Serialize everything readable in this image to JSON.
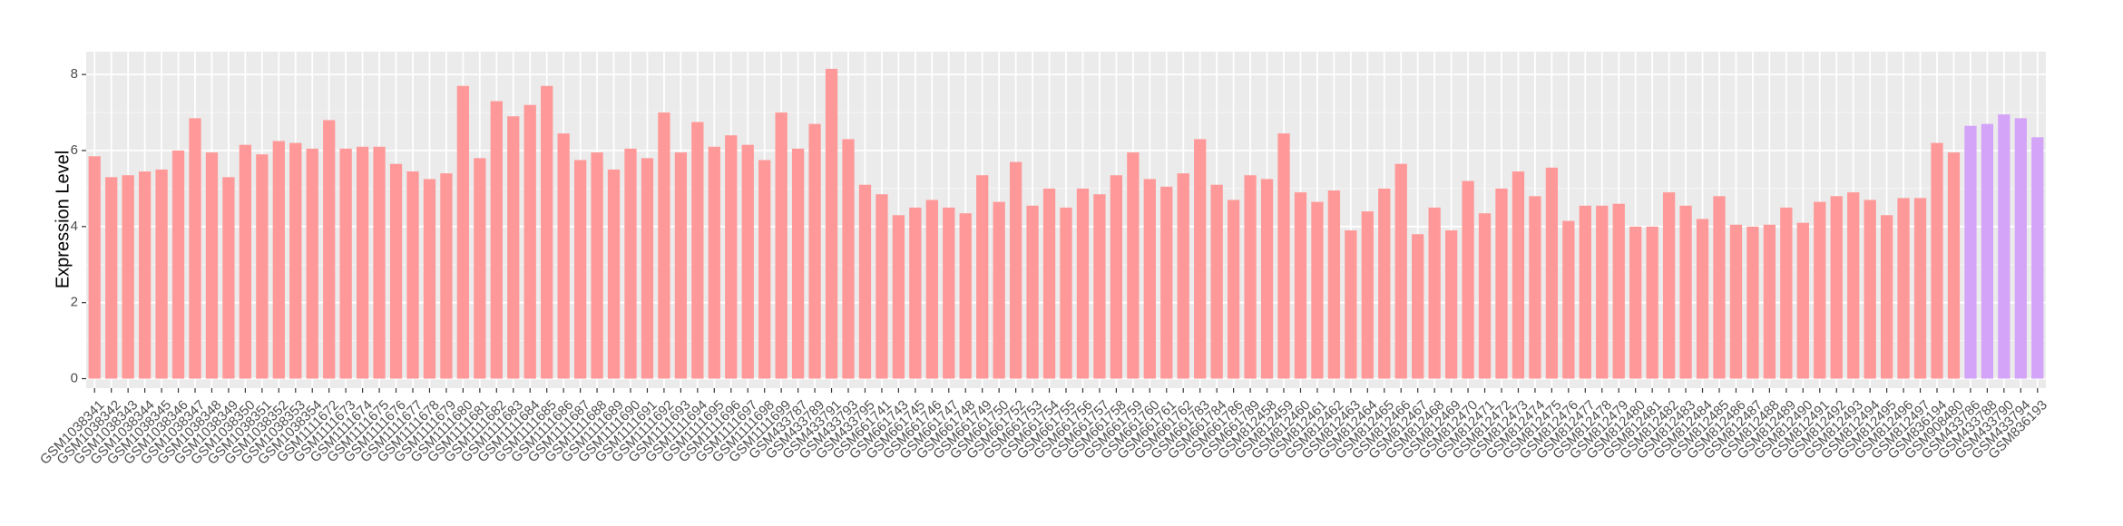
{
  "chart_data": {
    "type": "bar",
    "y_label": "Expression Level",
    "categories": [
      "GSM1038341",
      "GSM1038342",
      "GSM1038343",
      "GSM1038344",
      "GSM1038345",
      "GSM1038346",
      "GSM1038347",
      "GSM1038348",
      "GSM1038349",
      "GSM1038350",
      "GSM1038351",
      "GSM1038352",
      "GSM1038353",
      "GSM1038354",
      "GSM1111672",
      "GSM1111673",
      "GSM1111674",
      "GSM1111675",
      "GSM1111676",
      "GSM1111677",
      "GSM1111678",
      "GSM1111679",
      "GSM1111680",
      "GSM1111681",
      "GSM1111682",
      "GSM1111683",
      "GSM1111684",
      "GSM1111685",
      "GSM1111686",
      "GSM1111687",
      "GSM1111688",
      "GSM1111689",
      "GSM1111690",
      "GSM1111691",
      "GSM1111692",
      "GSM1111693",
      "GSM1111694",
      "GSM1111695",
      "GSM1111696",
      "GSM1111697",
      "GSM1111698",
      "GSM1111699",
      "GSM433787",
      "GSM433789",
      "GSM433791",
      "GSM433793",
      "GSM433795",
      "GSM661741",
      "GSM661743",
      "GSM661745",
      "GSM661746",
      "GSM661747",
      "GSM661748",
      "GSM661749",
      "GSM661750",
      "GSM661752",
      "GSM661753",
      "GSM661754",
      "GSM661755",
      "GSM661756",
      "GSM661757",
      "GSM661758",
      "GSM661759",
      "GSM661760",
      "GSM661761",
      "GSM661762",
      "GSM661783",
      "GSM661784",
      "GSM661786",
      "GSM661789",
      "GSM812458",
      "GSM812459",
      "GSM812460",
      "GSM812461",
      "GSM812462",
      "GSM812463",
      "GSM812464",
      "GSM812465",
      "GSM812466",
      "GSM812467",
      "GSM812468",
      "GSM812469",
      "GSM812470",
      "GSM812471",
      "GSM812472",
      "GSM812473",
      "GSM812474",
      "GSM812475",
      "GSM812476",
      "GSM812477",
      "GSM812478",
      "GSM812479",
      "GSM812480",
      "GSM812481",
      "GSM812482",
      "GSM812483",
      "GSM812484",
      "GSM812485",
      "GSM812486",
      "GSM812487",
      "GSM812488",
      "GSM812489",
      "GSM812490",
      "GSM812491",
      "GSM812492",
      "GSM812493",
      "GSM812494",
      "GSM812495",
      "GSM812496",
      "GSM812497",
      "GSM836194",
      "GSM908480",
      "GSM433786",
      "GSM433788",
      "GSM433790",
      "GSM433794",
      "GSM836193"
    ],
    "values": [
      5.85,
      5.3,
      5.35,
      5.45,
      5.5,
      6.0,
      6.85,
      5.95,
      5.3,
      6.15,
      5.9,
      6.25,
      6.2,
      6.05,
      6.8,
      6.05,
      6.1,
      6.1,
      5.65,
      5.45,
      5.25,
      5.4,
      7.7,
      5.8,
      7.3,
      6.9,
      7.2,
      7.7,
      6.45,
      5.75,
      5.95,
      5.5,
      6.05,
      5.8,
      7.0,
      5.95,
      6.75,
      6.1,
      6.4,
      6.15,
      5.75,
      7.0,
      6.05,
      6.7,
      8.15,
      6.3,
      5.1,
      4.85,
      4.3,
      4.5,
      4.7,
      4.5,
      4.35,
      5.35,
      4.65,
      5.7,
      4.55,
      5.0,
      4.5,
      5.0,
      4.85,
      5.35,
      5.95,
      5.25,
      5.05,
      5.4,
      6.3,
      5.1,
      4.7,
      5.35,
      5.25,
      6.45,
      4.9,
      4.65,
      4.95,
      3.9,
      4.4,
      5.0,
      5.65,
      3.8,
      4.5,
      3.9,
      5.2,
      4.35,
      5.0,
      5.45,
      4.8,
      5.55,
      4.15,
      4.55,
      4.55,
      4.6,
      4.0,
      4.0,
      4.9,
      4.55,
      4.2,
      4.8,
      4.05,
      4.0,
      4.05,
      4.5,
      4.1,
      4.65,
      4.8,
      4.9,
      4.7,
      4.3,
      4.75,
      4.75,
      6.2,
      5.95,
      6.65,
      6.7,
      6.95,
      6.85,
      6.35
    ],
    "colors": [
      "#ff9999",
      "#ff9999",
      "#ff9999",
      "#ff9999",
      "#ff9999",
      "#ff9999",
      "#ff9999",
      "#ff9999",
      "#ff9999",
      "#ff9999",
      "#ff9999",
      "#ff9999",
      "#ff9999",
      "#ff9999",
      "#ff9999",
      "#ff9999",
      "#ff9999",
      "#ff9999",
      "#ff9999",
      "#ff9999",
      "#ff9999",
      "#ff9999",
      "#ff9999",
      "#ff9999",
      "#ff9999",
      "#ff9999",
      "#ff9999",
      "#ff9999",
      "#ff9999",
      "#ff9999",
      "#ff9999",
      "#ff9999",
      "#ff9999",
      "#ff9999",
      "#ff9999",
      "#ff9999",
      "#ff9999",
      "#ff9999",
      "#ff9999",
      "#ff9999",
      "#ff9999",
      "#ff9999",
      "#ff9999",
      "#ff9999",
      "#ff9999",
      "#ff9999",
      "#ff9999",
      "#ff9999",
      "#ff9999",
      "#ff9999",
      "#ff9999",
      "#ff9999",
      "#ff9999",
      "#ff9999",
      "#ff9999",
      "#ff9999",
      "#ff9999",
      "#ff9999",
      "#ff9999",
      "#ff9999",
      "#ff9999",
      "#ff9999",
      "#ff9999",
      "#ff9999",
      "#ff9999",
      "#ff9999",
      "#ff9999",
      "#ff9999",
      "#ff9999",
      "#ff9999",
      "#ff9999",
      "#ff9999",
      "#ff9999",
      "#ff9999",
      "#ff9999",
      "#ff9999",
      "#ff9999",
      "#ff9999",
      "#ff9999",
      "#ff9999",
      "#ff9999",
      "#ff9999",
      "#ff9999",
      "#ff9999",
      "#ff9999",
      "#ff9999",
      "#ff9999",
      "#ff9999",
      "#ff9999",
      "#ff9999",
      "#ff9999",
      "#ff9999",
      "#ff9999",
      "#ff9999",
      "#ff9999",
      "#ff9999",
      "#ff9999",
      "#ff9999",
      "#ff9999",
      "#ff9999",
      "#ff9999",
      "#ff9999",
      "#ff9999",
      "#ff9999",
      "#ff9999",
      "#ff9999",
      "#ff9999",
      "#ff9999",
      "#ff9999",
      "#ff9999",
      "#ff9999",
      "#ff9999",
      "#d4a4f8",
      "#d4a4f8",
      "#d4a4f8",
      "#d4a4f8",
      "#d4a4f8"
    ],
    "ylim": [
      -0.25,
      8.6
    ],
    "yticks": [
      0,
      2,
      4,
      6,
      8
    ],
    "grid": true
  }
}
